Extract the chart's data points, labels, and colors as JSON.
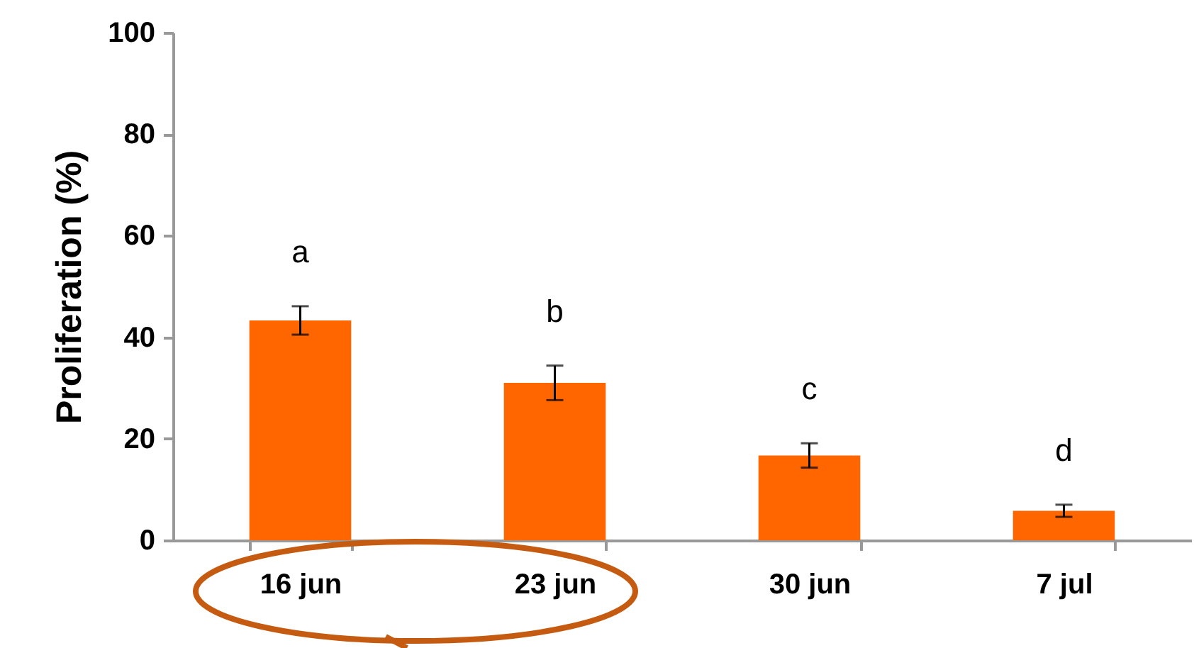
{
  "chart_data": {
    "type": "bar",
    "ylabel": "Proliferation (%)",
    "categories": [
      "16 jun",
      "23 jun",
      "30 jun",
      "7 jul"
    ],
    "values": [
      43.3,
      31,
      16.7,
      5.8
    ],
    "errors": [
      2.8,
      3.4,
      2.4,
      1.2
    ],
    "color": "#ff6600",
    "ylim": [
      0,
      100
    ],
    "yticks": [
      0,
      20,
      40,
      60,
      80,
      100
    ],
    "grid": false,
    "annotations": [
      "a",
      "b",
      "c",
      "d"
    ]
  }
}
